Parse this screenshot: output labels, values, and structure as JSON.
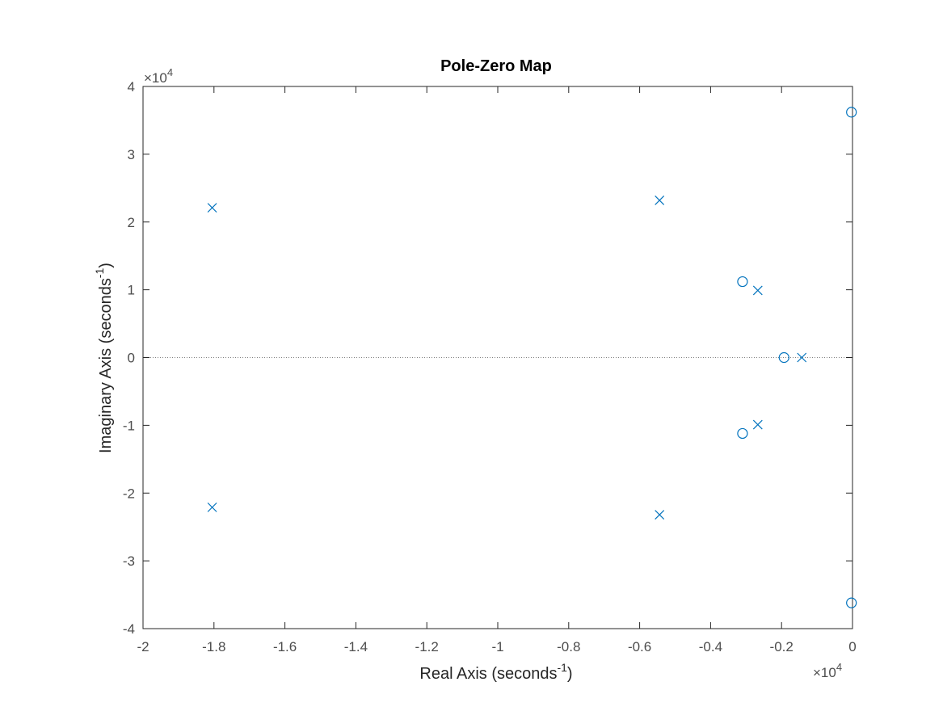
{
  "chart_data": {
    "type": "scatter",
    "title": "Pole-Zero Map",
    "xlabel": "Real Axis (seconds",
    "ylabel": "Imaginary Axis (seconds",
    "label_exponent": "-1",
    "xlim": [
      -2,
      0
    ],
    "ylim": [
      -4,
      4
    ],
    "x_ticks": [
      -2,
      -1.8,
      -1.6,
      -1.4,
      -1.2,
      -1,
      -0.8,
      -0.6,
      -0.4,
      -0.2,
      0
    ],
    "y_ticks": [
      -4,
      -3,
      -2,
      -1,
      0,
      1,
      2,
      3,
      4
    ],
    "x_tick_labels": [
      "-2",
      "-1.8",
      "-1.6",
      "-1.4",
      "-1.2",
      "-1",
      "-0.8",
      "-0.6",
      "-0.4",
      "-0.2",
      "0"
    ],
    "y_tick_labels": [
      "-4",
      "-3",
      "-2",
      "-1",
      "0",
      "1",
      "2",
      "3",
      "4"
    ],
    "x_multiplier": {
      "base": "×10",
      "exp": "4"
    },
    "y_multiplier": {
      "base": "×10",
      "exp": "4"
    },
    "series": [
      {
        "marker": "x",
        "points": [
          {
            "x": -1.805,
            "y": 2.21
          },
          {
            "x": -1.805,
            "y": -2.21
          },
          {
            "x": -0.544,
            "y": 2.32
          },
          {
            "x": -0.544,
            "y": -2.32
          },
          {
            "x": -0.267,
            "y": 0.99
          },
          {
            "x": -0.267,
            "y": -0.99
          },
          {
            "x": -0.143,
            "y": 0.0
          }
        ]
      },
      {
        "marker": "o",
        "points": [
          {
            "x": -0.003,
            "y": 3.62
          },
          {
            "x": -0.003,
            "y": -3.62
          },
          {
            "x": -0.31,
            "y": 1.12
          },
          {
            "x": -0.31,
            "y": -1.12
          },
          {
            "x": -0.193,
            "y": 0.0
          }
        ]
      }
    ],
    "zero_line": "dotted",
    "grid": false,
    "marker_color": "#0072bd",
    "axis_color": "#262626",
    "tick_color": "#4d4d4d"
  }
}
